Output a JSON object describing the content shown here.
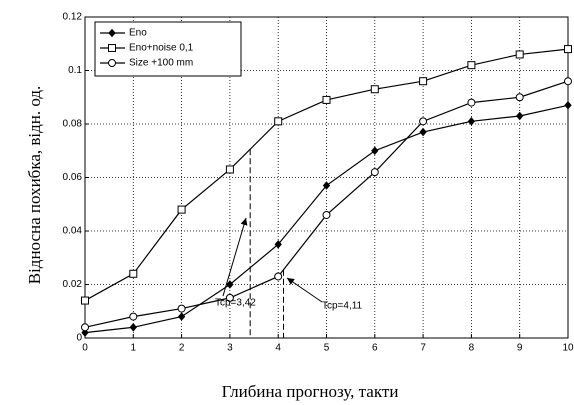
{
  "chart_data": {
    "type": "line",
    "x": [
      0,
      1,
      2,
      3,
      4,
      5,
      6,
      7,
      8,
      9,
      10
    ],
    "series": [
      {
        "name": "Eno",
        "color": "#000000",
        "marker": "diamond",
        "values": [
          0.002,
          0.004,
          0.008,
          0.02,
          0.035,
          0.057,
          0.07,
          0.077,
          0.081,
          0.083,
          0.087
        ]
      },
      {
        "name": "Eno+noise 0,1",
        "color": "#000000",
        "marker": "square",
        "values": [
          0.014,
          0.024,
          0.048,
          0.063,
          0.081,
          0.089,
          0.093,
          0.096,
          0.102,
          0.106,
          0.108
        ]
      },
      {
        "name": "Size +100 mm",
        "color": "#000000",
        "marker": "circle",
        "values": [
          0.004,
          0.008,
          0.011,
          0.015,
          0.023,
          0.046,
          0.062,
          0.081,
          0.088,
          0.09,
          0.096
        ]
      }
    ],
    "xlim": [
      0,
      10
    ],
    "xticks": [
      0,
      1,
      2,
      3,
      4,
      5,
      6,
      7,
      8,
      9,
      10
    ],
    "ylim": [
      0,
      0.12
    ],
    "yticks": [
      0,
      0.02,
      0.04,
      0.06,
      0.08,
      0.1,
      0.12
    ],
    "grid": true,
    "legend": "upper left",
    "xlabel": "Глибина прогнозу, такти",
    "ylabel": "Відносна похибка, відн. од.",
    "annotations": [
      {
        "text": "Tcp=3,42",
        "x": 3.42
      },
      {
        "text": "Tcp=4,11",
        "x": 4.11
      }
    ]
  }
}
